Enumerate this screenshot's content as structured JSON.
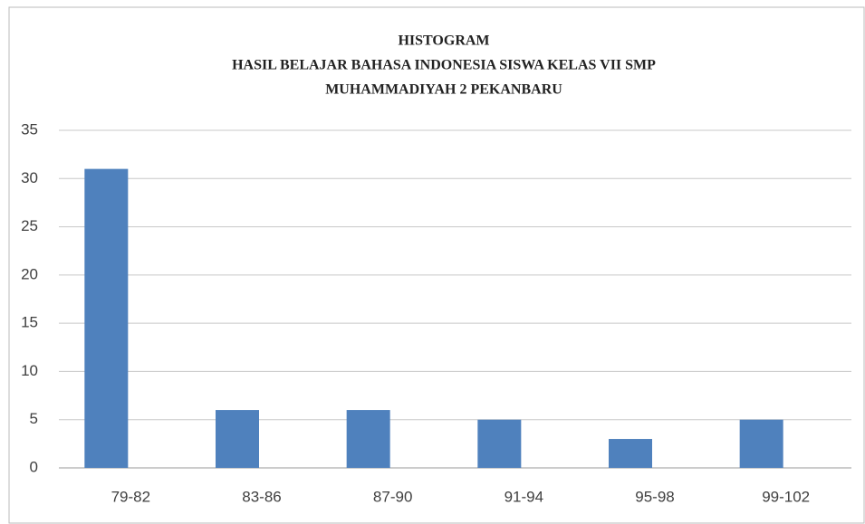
{
  "chart_data": {
    "type": "bar",
    "title": [
      "HISTOGRAM",
      "HASIL BELAJAR BAHASA INDONESIA SISWA KELAS VII SMP",
      "MUHAMMADIYAH 2 PEKANBARU"
    ],
    "categories": [
      "79-82",
      "83-86",
      "87-90",
      "91-94",
      "95-98",
      "99-102"
    ],
    "values": [
      31,
      6,
      6,
      5,
      3,
      5
    ],
    "color": "#4f81bd",
    "ylim": [
      0,
      35
    ],
    "yticks": [
      0,
      5,
      10,
      15,
      20,
      25,
      30,
      35
    ],
    "grid": true
  }
}
